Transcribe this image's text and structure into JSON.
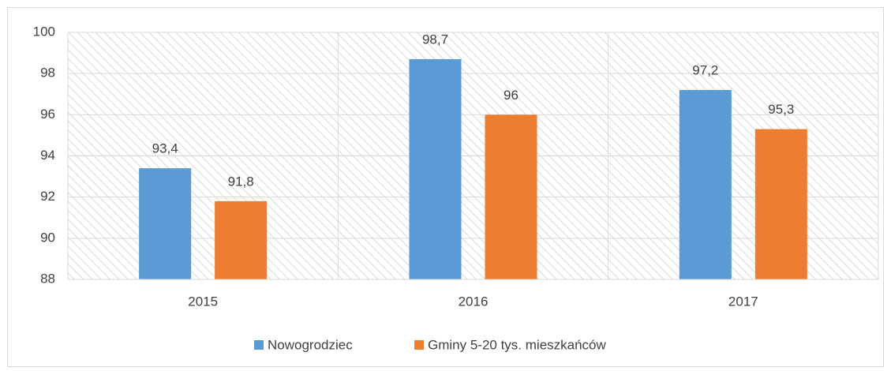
{
  "chart_data": {
    "type": "bar",
    "categories": [
      "2015",
      "2016",
      "2017"
    ],
    "series": [
      {
        "name": "Nowogrodziec",
        "color": "#5b9bd5",
        "values": [
          93.4,
          98.7,
          97.2
        ],
        "value_labels": [
          "93,4",
          "98,7",
          "97,2"
        ]
      },
      {
        "name": "Gminy 5-20 tys. mieszkańców",
        "color": "#ed7d31",
        "values": [
          91.8,
          96,
          95.3
        ],
        "value_labels": [
          "91,8",
          "96",
          "95,3"
        ]
      }
    ],
    "ylim": [
      88,
      100
    ],
    "yticks": [
      88,
      90,
      92,
      94,
      96,
      98,
      100
    ],
    "grid": true,
    "legend": "bottom"
  }
}
